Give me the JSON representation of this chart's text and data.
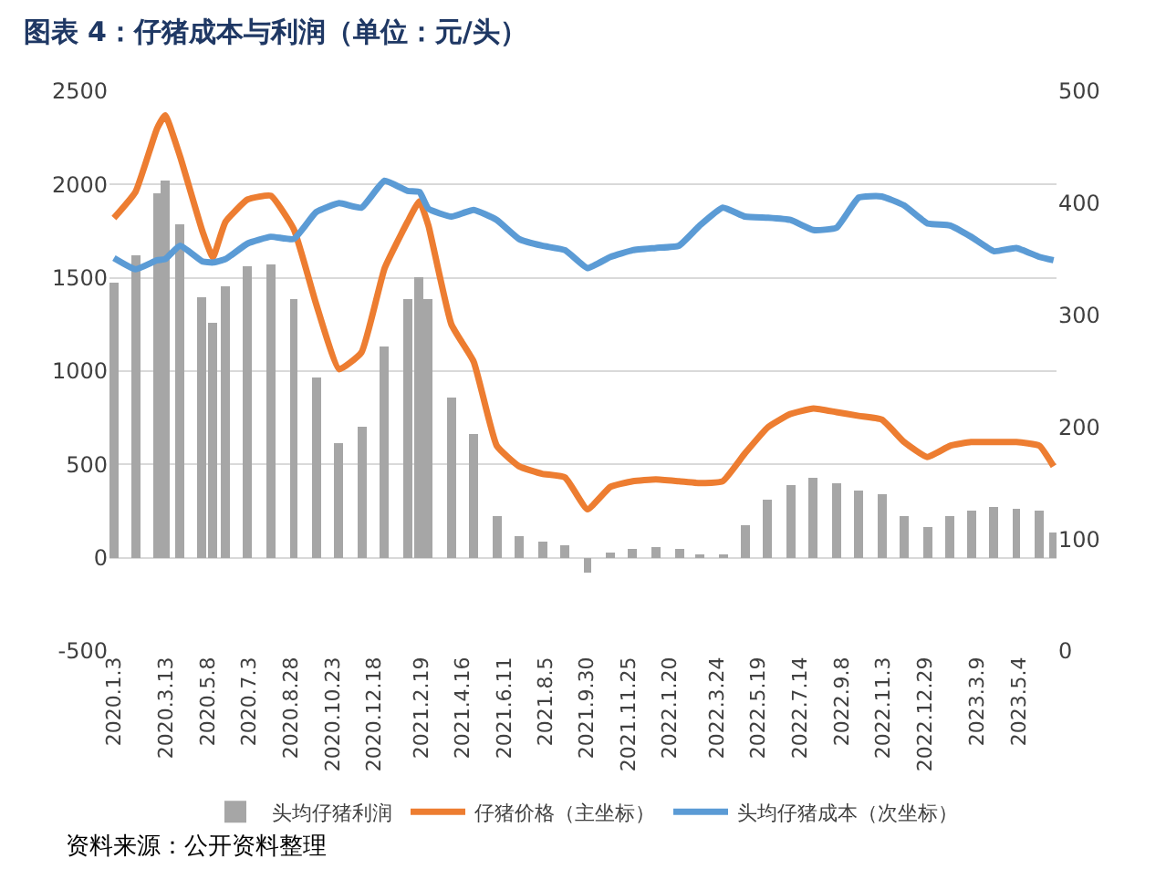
{
  "chart_data": {
    "type": "bar",
    "title": "图表 4：仔猪成本与利润（单位：元/头）",
    "x": [
      "2020-01-03",
      "2020-02-01",
      "2020-03-01",
      "2020-03-12",
      "2020-04-01",
      "2020-05-01",
      "2020-05-15",
      "2020-06-01",
      "2020-07-01",
      "2020-08-01",
      "2020-09-01",
      "2020-10-01",
      "2020-11-01",
      "2020-12-01",
      "2021-01-01",
      "2021-02-01",
      "2021-02-17",
      "2021-03-01",
      "2021-04-01",
      "2021-05-01",
      "2021-06-01",
      "2021-07-01",
      "2021-08-01",
      "2021-09-01",
      "2021-10-01",
      "2021-11-01",
      "2021-12-01",
      "2022-01-01",
      "2022-02-01",
      "2022-03-01",
      "2022-04-01",
      "2022-05-01",
      "2022-06-01",
      "2022-07-01",
      "2022-08-01",
      "2022-09-01",
      "2022-10-01",
      "2022-11-01",
      "2022-12-01",
      "2023-01-01",
      "2023-02-01",
      "2023-03-01",
      "2023-04-01",
      "2023-05-01",
      "2023-06-01",
      "2023-06-20"
    ],
    "series": [
      {
        "name": "头均仔猪利润",
        "color": "#a6a6a6",
        "values": [
          1470,
          1620,
          1950,
          2020,
          1790,
          1400,
          1260,
          1450,
          1560,
          1570,
          1390,
          970,
          610,
          700,
          1130,
          1390,
          1500,
          1390,
          860,
          660,
          220,
          120,
          90,
          70,
          -80,
          30,
          50,
          60,
          50,
          20,
          20,
          170,
          310,
          390,
          430,
          400,
          360,
          340,
          220,
          160,
          220,
          250,
          270,
          260,
          250,
          140
        ]
      },
      {
        "name": "仔猪价格（主坐标）",
        "type": "line",
        "color": "#ed7d31",
        "values": [
          1820,
          1960,
          2300,
          2370,
          2150,
          1750,
          1610,
          1800,
          1920,
          1940,
          1760,
          1360,
          1010,
          1100,
          1550,
          1800,
          1910,
          1780,
          1250,
          1050,
          600,
          490,
          450,
          430,
          260,
          380,
          410,
          420,
          410,
          400,
          410,
          560,
          700,
          770,
          800,
          780,
          760,
          740,
          620,
          540,
          600,
          620,
          620,
          620,
          600,
          490
        ]
      },
      {
        "name": "头均仔猪成本（次坐标）",
        "type": "line",
        "axis": "y2",
        "color": "#5b9bd5",
        "values": [
          351,
          341,
          349,
          350,
          362,
          348,
          347,
          350,
          364,
          370,
          368,
          392,
          400,
          396,
          420,
          411,
          410,
          395,
          388,
          394,
          385,
          368,
          362,
          358,
          342,
          352,
          358,
          360,
          362,
          380,
          396,
          388,
          387,
          385,
          376,
          378,
          405,
          406,
          398,
          382,
          380,
          370,
          357,
          360,
          352,
          349
        ]
      }
    ],
    "xlim": [
      "2019-12-28",
      "2023-06-24"
    ],
    "xticks": [
      {
        "value": "2020-01-03",
        "label": "2020.1.3"
      },
      {
        "value": "2020-03-13",
        "label": "2020.3.13"
      },
      {
        "value": "2020-05-08",
        "label": "2020.5.8"
      },
      {
        "value": "2020-07-03",
        "label": "2020.7.3"
      },
      {
        "value": "2020-08-28",
        "label": "2020.8.28"
      },
      {
        "value": "2020-10-23",
        "label": "2020.10.23"
      },
      {
        "value": "2020-12-18",
        "label": "2020.12.18"
      },
      {
        "value": "2021-02-19",
        "label": "2021.2.19"
      },
      {
        "value": "2021-04-16",
        "label": "2021.4.16"
      },
      {
        "value": "2021-06-11",
        "label": "2021.6.11"
      },
      {
        "value": "2021-08-05",
        "label": "2021.8.5"
      },
      {
        "value": "2021-09-30",
        "label": "2021.9.30"
      },
      {
        "value": "2021-11-25",
        "label": "2021.11.25"
      },
      {
        "value": "2022-01-20",
        "label": "2022.1.20"
      },
      {
        "value": "2022-03-24",
        "label": "2022.3.24"
      },
      {
        "value": "2022-05-19",
        "label": "2022.5.19"
      },
      {
        "value": "2022-07-14",
        "label": "2022.7.14"
      },
      {
        "value": "2022-09-08",
        "label": "2022.9.8"
      },
      {
        "value": "2022-11-03",
        "label": "2022.11.3"
      },
      {
        "value": "2022-12-29",
        "label": "2022.12.29"
      },
      {
        "value": "2023-03-09",
        "label": "2023.3.9"
      },
      {
        "value": "2023-05-04",
        "label": "2023.5.4"
      }
    ],
    "ylim": [
      -500,
      2500
    ],
    "yticks": [
      -500,
      0,
      500,
      1000,
      1500,
      2000,
      2500
    ],
    "y2lim": [
      0,
      500
    ],
    "y2ticks": [
      0,
      100,
      200,
      300,
      400,
      500
    ],
    "grid": "y",
    "legend": "bottom",
    "marker": "none",
    "line_style": "solid",
    "annotations": [
      "资料来源：公开资料整理"
    ]
  }
}
